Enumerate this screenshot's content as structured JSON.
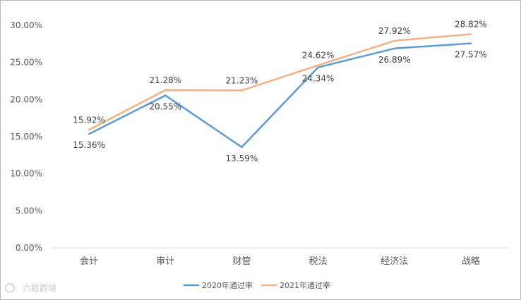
{
  "chart_data": {
    "type": "line",
    "title": "",
    "xlabel": "",
    "ylabel": "",
    "categories": [
      "会计",
      "审计",
      "财管",
      "税法",
      "经济法",
      "战略"
    ],
    "ylim": [
      0,
      30
    ],
    "yticks": [
      "0.00%",
      "5.00%",
      "10.00%",
      "15.00%",
      "20.00%",
      "25.00%",
      "30.00%"
    ],
    "grid": false,
    "legend_position": "bottom",
    "series": [
      {
        "name": "2020年通过率",
        "color": "#5b9bd5",
        "values": [
          15.36,
          20.55,
          13.59,
          24.34,
          26.89,
          27.57
        ],
        "labels": [
          "15.36%",
          "20.55%",
          "13.59%",
          "24.34%",
          "26.89%",
          "27.57%"
        ]
      },
      {
        "name": "2021年通过率",
        "color": "#f4b183",
        "values": [
          15.92,
          21.28,
          21.23,
          24.62,
          27.92,
          28.82
        ],
        "labels": [
          "15.92%",
          "21.28%",
          "21.23%",
          "24.62%",
          "27.92%",
          "28.82%"
        ]
      }
    ]
  },
  "watermark": {
    "text": "六敌跨境"
  }
}
